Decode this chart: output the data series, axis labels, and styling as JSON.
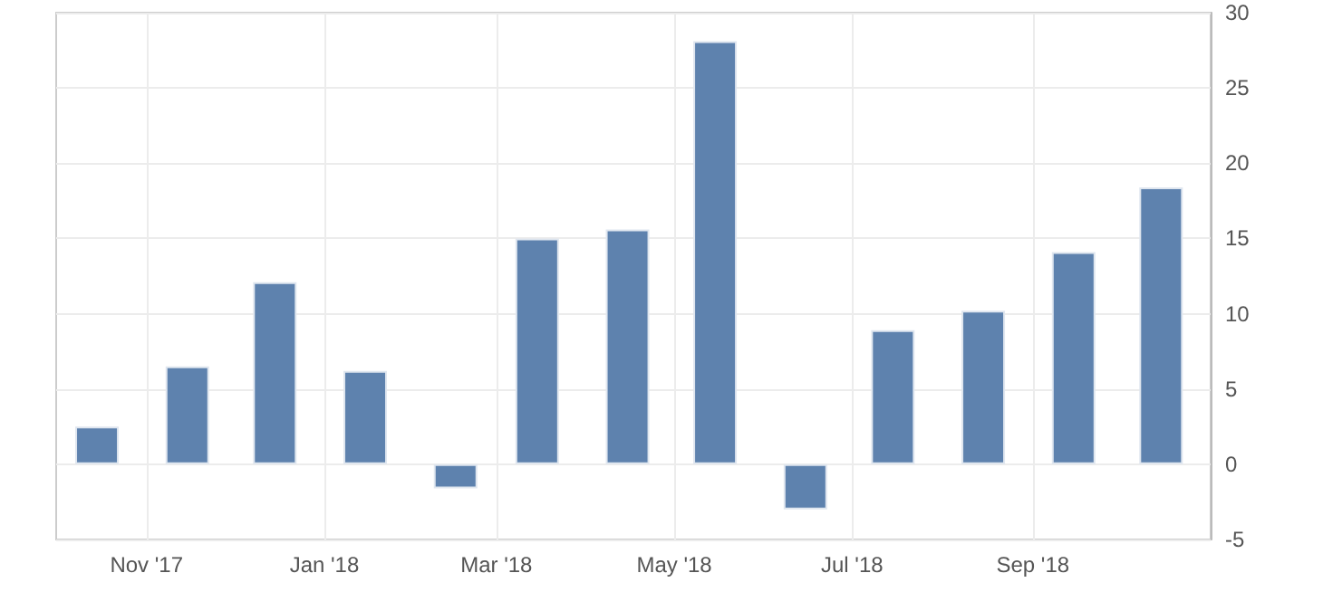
{
  "chart_data": {
    "type": "bar",
    "x": [
      "2017-10-15",
      "2017-11-15",
      "2017-12-15",
      "2018-01-15",
      "2018-02-15",
      "2018-03-15",
      "2018-04-15",
      "2018-05-15",
      "2018-06-15",
      "2018-07-15",
      "2018-08-15",
      "2018-09-15",
      "2018-10-15"
    ],
    "values": [
      2.5,
      6.5,
      12.1,
      6.2,
      -1.6,
      15.0,
      15.6,
      28.1,
      -3.0,
      8.9,
      10.2,
      14.1,
      18.4
    ],
    "color": "#5e82ae",
    "xlim": [
      "2017-10-01",
      "2018-11-01"
    ],
    "xticks": [
      {
        "value": "2017-11-01",
        "label": "Nov '17"
      },
      {
        "value": "2018-01-01",
        "label": "Jan '18"
      },
      {
        "value": "2018-03-01",
        "label": "Mar '18"
      },
      {
        "value": "2018-05-01",
        "label": "May '18"
      },
      {
        "value": "2018-07-01",
        "label": "Jul '18"
      },
      {
        "value": "2018-09-01",
        "label": "Sep '18"
      }
    ],
    "ylim": [
      -5,
      30
    ],
    "yticks": [
      -5,
      0,
      5,
      10,
      15,
      20,
      25,
      30
    ],
    "grid": true
  }
}
